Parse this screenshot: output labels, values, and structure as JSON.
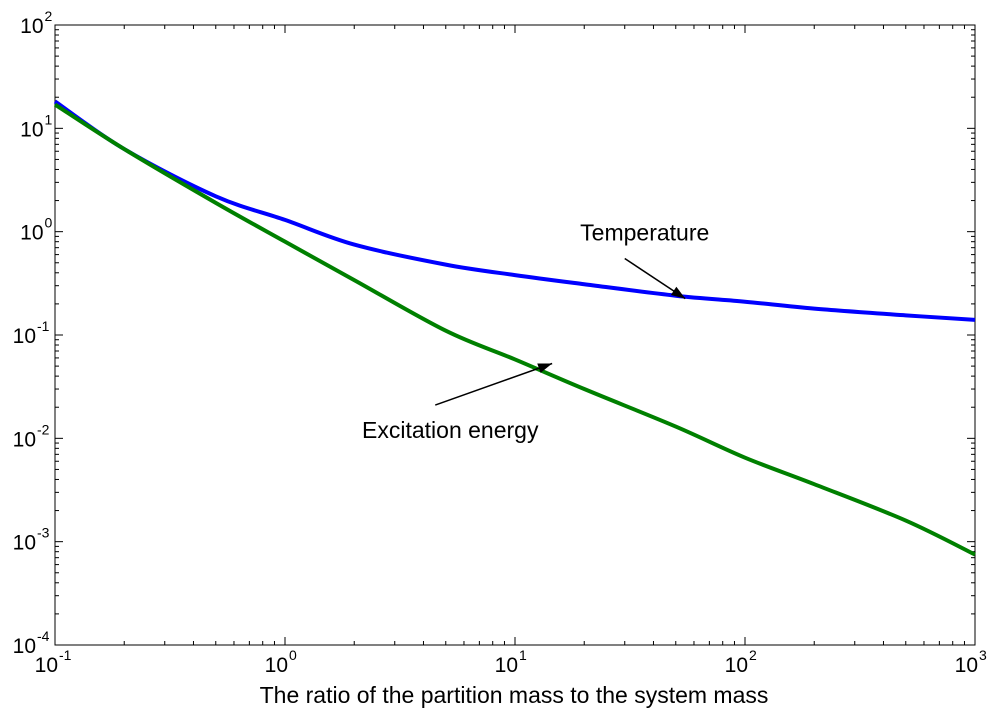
{
  "chart_data": {
    "type": "line",
    "title": "",
    "xlabel": "The ratio of the partition mass to the system mass",
    "ylabel": "",
    "xscale": "log",
    "yscale": "log",
    "xlim": [
      0.1,
      1000
    ],
    "ylim": [
      0.0001,
      100
    ],
    "grid": false,
    "legend": "none",
    "x_ticks": [
      {
        "base": "10",
        "exp": "-1",
        "value": 0.1
      },
      {
        "base": "10",
        "exp": "0",
        "value": 1
      },
      {
        "base": "10",
        "exp": "1",
        "value": 10
      },
      {
        "base": "10",
        "exp": "2",
        "value": 100
      },
      {
        "base": "10",
        "exp": "3",
        "value": 1000
      }
    ],
    "y_ticks": [
      {
        "base": "10",
        "exp": "-4",
        "value": 0.0001
      },
      {
        "base": "10",
        "exp": "-3",
        "value": 0.001
      },
      {
        "base": "10",
        "exp": "-2",
        "value": 0.01
      },
      {
        "base": "10",
        "exp": "-1",
        "value": 0.1
      },
      {
        "base": "10",
        "exp": "0",
        "value": 1
      },
      {
        "base": "10",
        "exp": "1",
        "value": 10
      },
      {
        "base": "10",
        "exp": "2",
        "value": 100
      }
    ],
    "series": [
      {
        "color": "#0000ff",
        "x": [
          0.1,
          0.2,
          0.5,
          1,
          2,
          5,
          10,
          20,
          50,
          100,
          200,
          500,
          1000
        ],
        "y": [
          18.2,
          6.3,
          2.2,
          1.3,
          0.75,
          0.48,
          0.38,
          0.31,
          0.24,
          0.21,
          0.18,
          0.155,
          0.14
        ]
      },
      {
        "color": "#008000",
        "x": [
          0.1,
          0.2,
          0.5,
          1,
          2,
          5,
          10,
          20,
          50,
          100,
          200,
          500,
          1000
        ],
        "y": [
          17,
          6.3,
          1.9,
          0.8,
          0.34,
          0.11,
          0.058,
          0.03,
          0.013,
          0.0065,
          0.0036,
          0.0016,
          0.00075
        ]
      }
    ],
    "annotations": [
      {
        "text": "Temperature",
        "point": {
          "x": 55,
          "y": 0.225
        },
        "arrow_from": {
          "x": 30,
          "y": 0.55
        }
      },
      {
        "text": "Excitation energy",
        "point": {
          "x": 14.5,
          "y": 0.053
        },
        "arrow_from": {
          "x": 4.5,
          "y": 0.021
        }
      }
    ]
  }
}
